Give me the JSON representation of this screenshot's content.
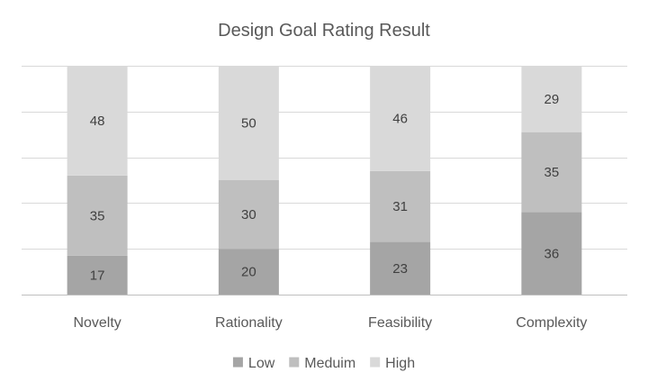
{
  "chart_data": {
    "type": "bar",
    "stacked": true,
    "title": "Design Goal Rating Result",
    "xlabel": "",
    "ylabel": "",
    "categories": [
      "Novelty",
      "Rationality",
      "Feasibility",
      "Complexity"
    ],
    "series": [
      {
        "name": "Low",
        "values": [
          17,
          20,
          23,
          36
        ],
        "color": "#a5a5a5"
      },
      {
        "name": "Meduim",
        "values": [
          35,
          30,
          31,
          35
        ],
        "color": "#bfbfbf"
      },
      {
        "name": "High",
        "values": [
          48,
          50,
          46,
          29
        ],
        "color": "#d9d9d9"
      }
    ],
    "ylim": [
      0,
      100
    ],
    "y_axis_labels_shown": false,
    "grid": true,
    "gridline_color": "#d9d9d9",
    "data_labels": true,
    "legend_position": "bottom"
  }
}
